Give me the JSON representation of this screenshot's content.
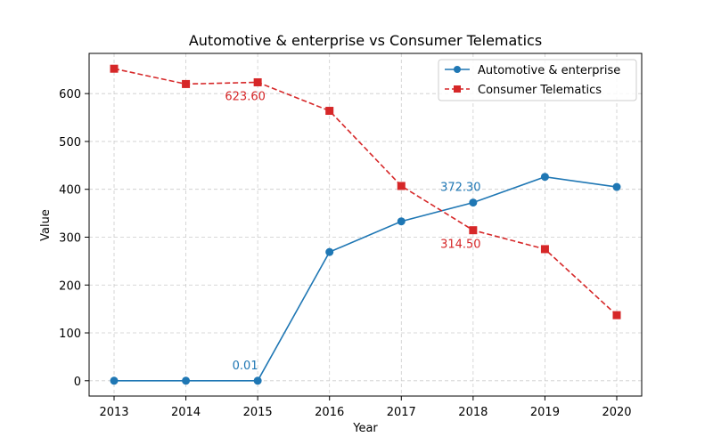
{
  "chart_data": {
    "type": "line",
    "title": "Automotive & enterprise vs Consumer Telematics",
    "xlabel": "Year",
    "ylabel": "Value",
    "categories": [
      "2013",
      "2014",
      "2015",
      "2016",
      "2017",
      "2018",
      "2019",
      "2020"
    ],
    "ylim": [
      -32,
      684
    ],
    "yticks": [
      0,
      100,
      200,
      300,
      400,
      500,
      600
    ],
    "grid": true,
    "legend_position": "top-right",
    "series": [
      {
        "name": "Automotive & enterprise",
        "color": "#1f77b4",
        "marker": "circle",
        "line_style": "solid",
        "values": [
          0.01,
          0.01,
          0.01,
          269,
          333,
          372.3,
          426,
          405
        ]
      },
      {
        "name": "Consumer Telematics",
        "color": "#d62728",
        "marker": "square",
        "line_style": "dashed",
        "values": [
          652,
          620,
          623.6,
          564,
          407,
          314.5,
          275,
          137
        ]
      }
    ],
    "annotations": [
      {
        "series": 0,
        "index": 2,
        "text": "0.01"
      },
      {
        "series": 0,
        "index": 5,
        "text": "372.30"
      },
      {
        "series": 1,
        "index": 2,
        "text": "623.60"
      },
      {
        "series": 1,
        "index": 5,
        "text": "314.50"
      }
    ]
  }
}
